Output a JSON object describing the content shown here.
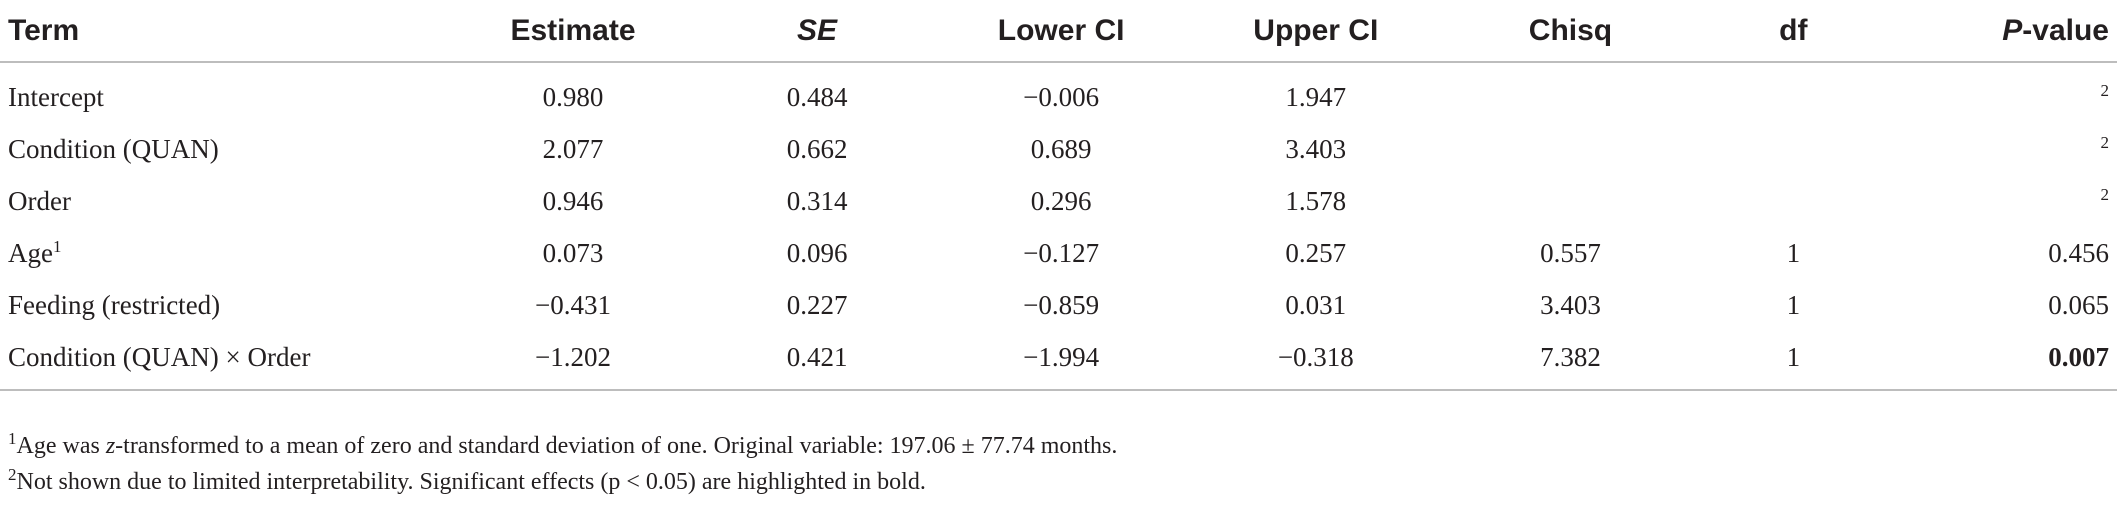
{
  "table": {
    "headers": {
      "term": "Term",
      "estimate": "Estimate",
      "se": "SE",
      "lower": "Lower CI",
      "upper": "Upper CI",
      "chisq": "Chisq",
      "df": "df",
      "p_italic": "P",
      "p_rest": "-value"
    },
    "rows": [
      {
        "term": "Intercept",
        "sup": "",
        "estimate": "0.980",
        "se": "0.484",
        "lower": "−0.006",
        "upper": "1.947",
        "chisq": "",
        "df": "",
        "p": "",
        "p_sup": "2"
      },
      {
        "term": "Condition (QUAN)",
        "sup": "",
        "estimate": "2.077",
        "se": "0.662",
        "lower": "0.689",
        "upper": "3.403",
        "chisq": "",
        "df": "",
        "p": "",
        "p_sup": "2"
      },
      {
        "term": "Order",
        "sup": "",
        "estimate": "0.946",
        "se": "0.314",
        "lower": "0.296",
        "upper": "1.578",
        "chisq": "",
        "df": "",
        "p": "",
        "p_sup": "2"
      },
      {
        "term": "Age",
        "sup": "1",
        "estimate": "0.073",
        "se": "0.096",
        "lower": "−0.127",
        "upper": "0.257",
        "chisq": "0.557",
        "df": "1",
        "p": "0.456",
        "p_sup": ""
      },
      {
        "term": "Feeding (restricted)",
        "sup": "",
        "estimate": "−0.431",
        "se": "0.227",
        "lower": "−0.859",
        "upper": "0.031",
        "chisq": "3.403",
        "df": "1",
        "p": "0.065",
        "p_sup": ""
      },
      {
        "term": "Condition (QUAN) × Order",
        "sup": "",
        "estimate": "−1.202",
        "se": "0.421",
        "lower": "−1.994",
        "upper": "−0.318",
        "chisq": "7.382",
        "df": "1",
        "p": "0.007",
        "p_sup": ""
      }
    ]
  },
  "footnotes": {
    "note1": {
      "mark": "1",
      "pre": "Age was ",
      "italic": "z",
      "post": "-transformed to a mean of zero and standard deviation of one. Original variable: 197.06 ± 77.74 months."
    },
    "note2": {
      "mark": "2",
      "text": "Not shown due to limited interpretability. Significant effects (p < 0.05) are highlighted in bold."
    }
  }
}
